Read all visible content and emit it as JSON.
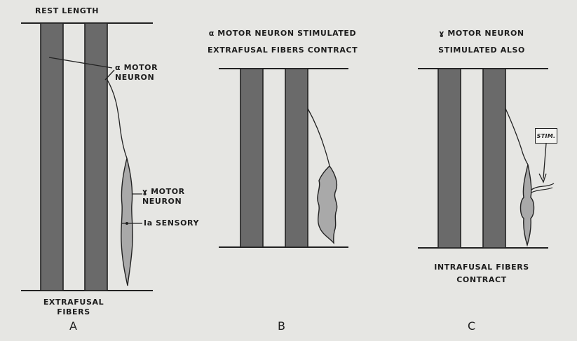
{
  "panel_a": {
    "title": "REST LENGTH",
    "alpha_label_line1": "α MOTOR",
    "alpha_label_line2": "NEURON",
    "gamma_label_line1": "ɣ MOTOR",
    "gamma_label_line2": "NEURON",
    "sensory_label": "Ia SENSORY",
    "bottom_label_line1": "EXTRAFUSAL",
    "bottom_label_line2": "FIBERS",
    "letter": "A"
  },
  "panel_b": {
    "title_line1": "α MOTOR NEURON STIMULATED",
    "title_line2": "EXTRAFUSAL FIBERS CONTRACT",
    "letter": "B"
  },
  "panel_c": {
    "title_line1": "ɣ MOTOR NEURON",
    "title_line2": "STIMULATED ALSO",
    "stim_label": "STIM.",
    "bottom_label_line1": "INTRAFUSAL FIBERS",
    "bottom_label_line2": "CONTRACT",
    "letter": "C"
  },
  "colors": {
    "background": "#e6e6e3",
    "fiber_fill": "#6a6a6a",
    "spindle_fill": "#a9a9a9",
    "line": "#222222"
  }
}
